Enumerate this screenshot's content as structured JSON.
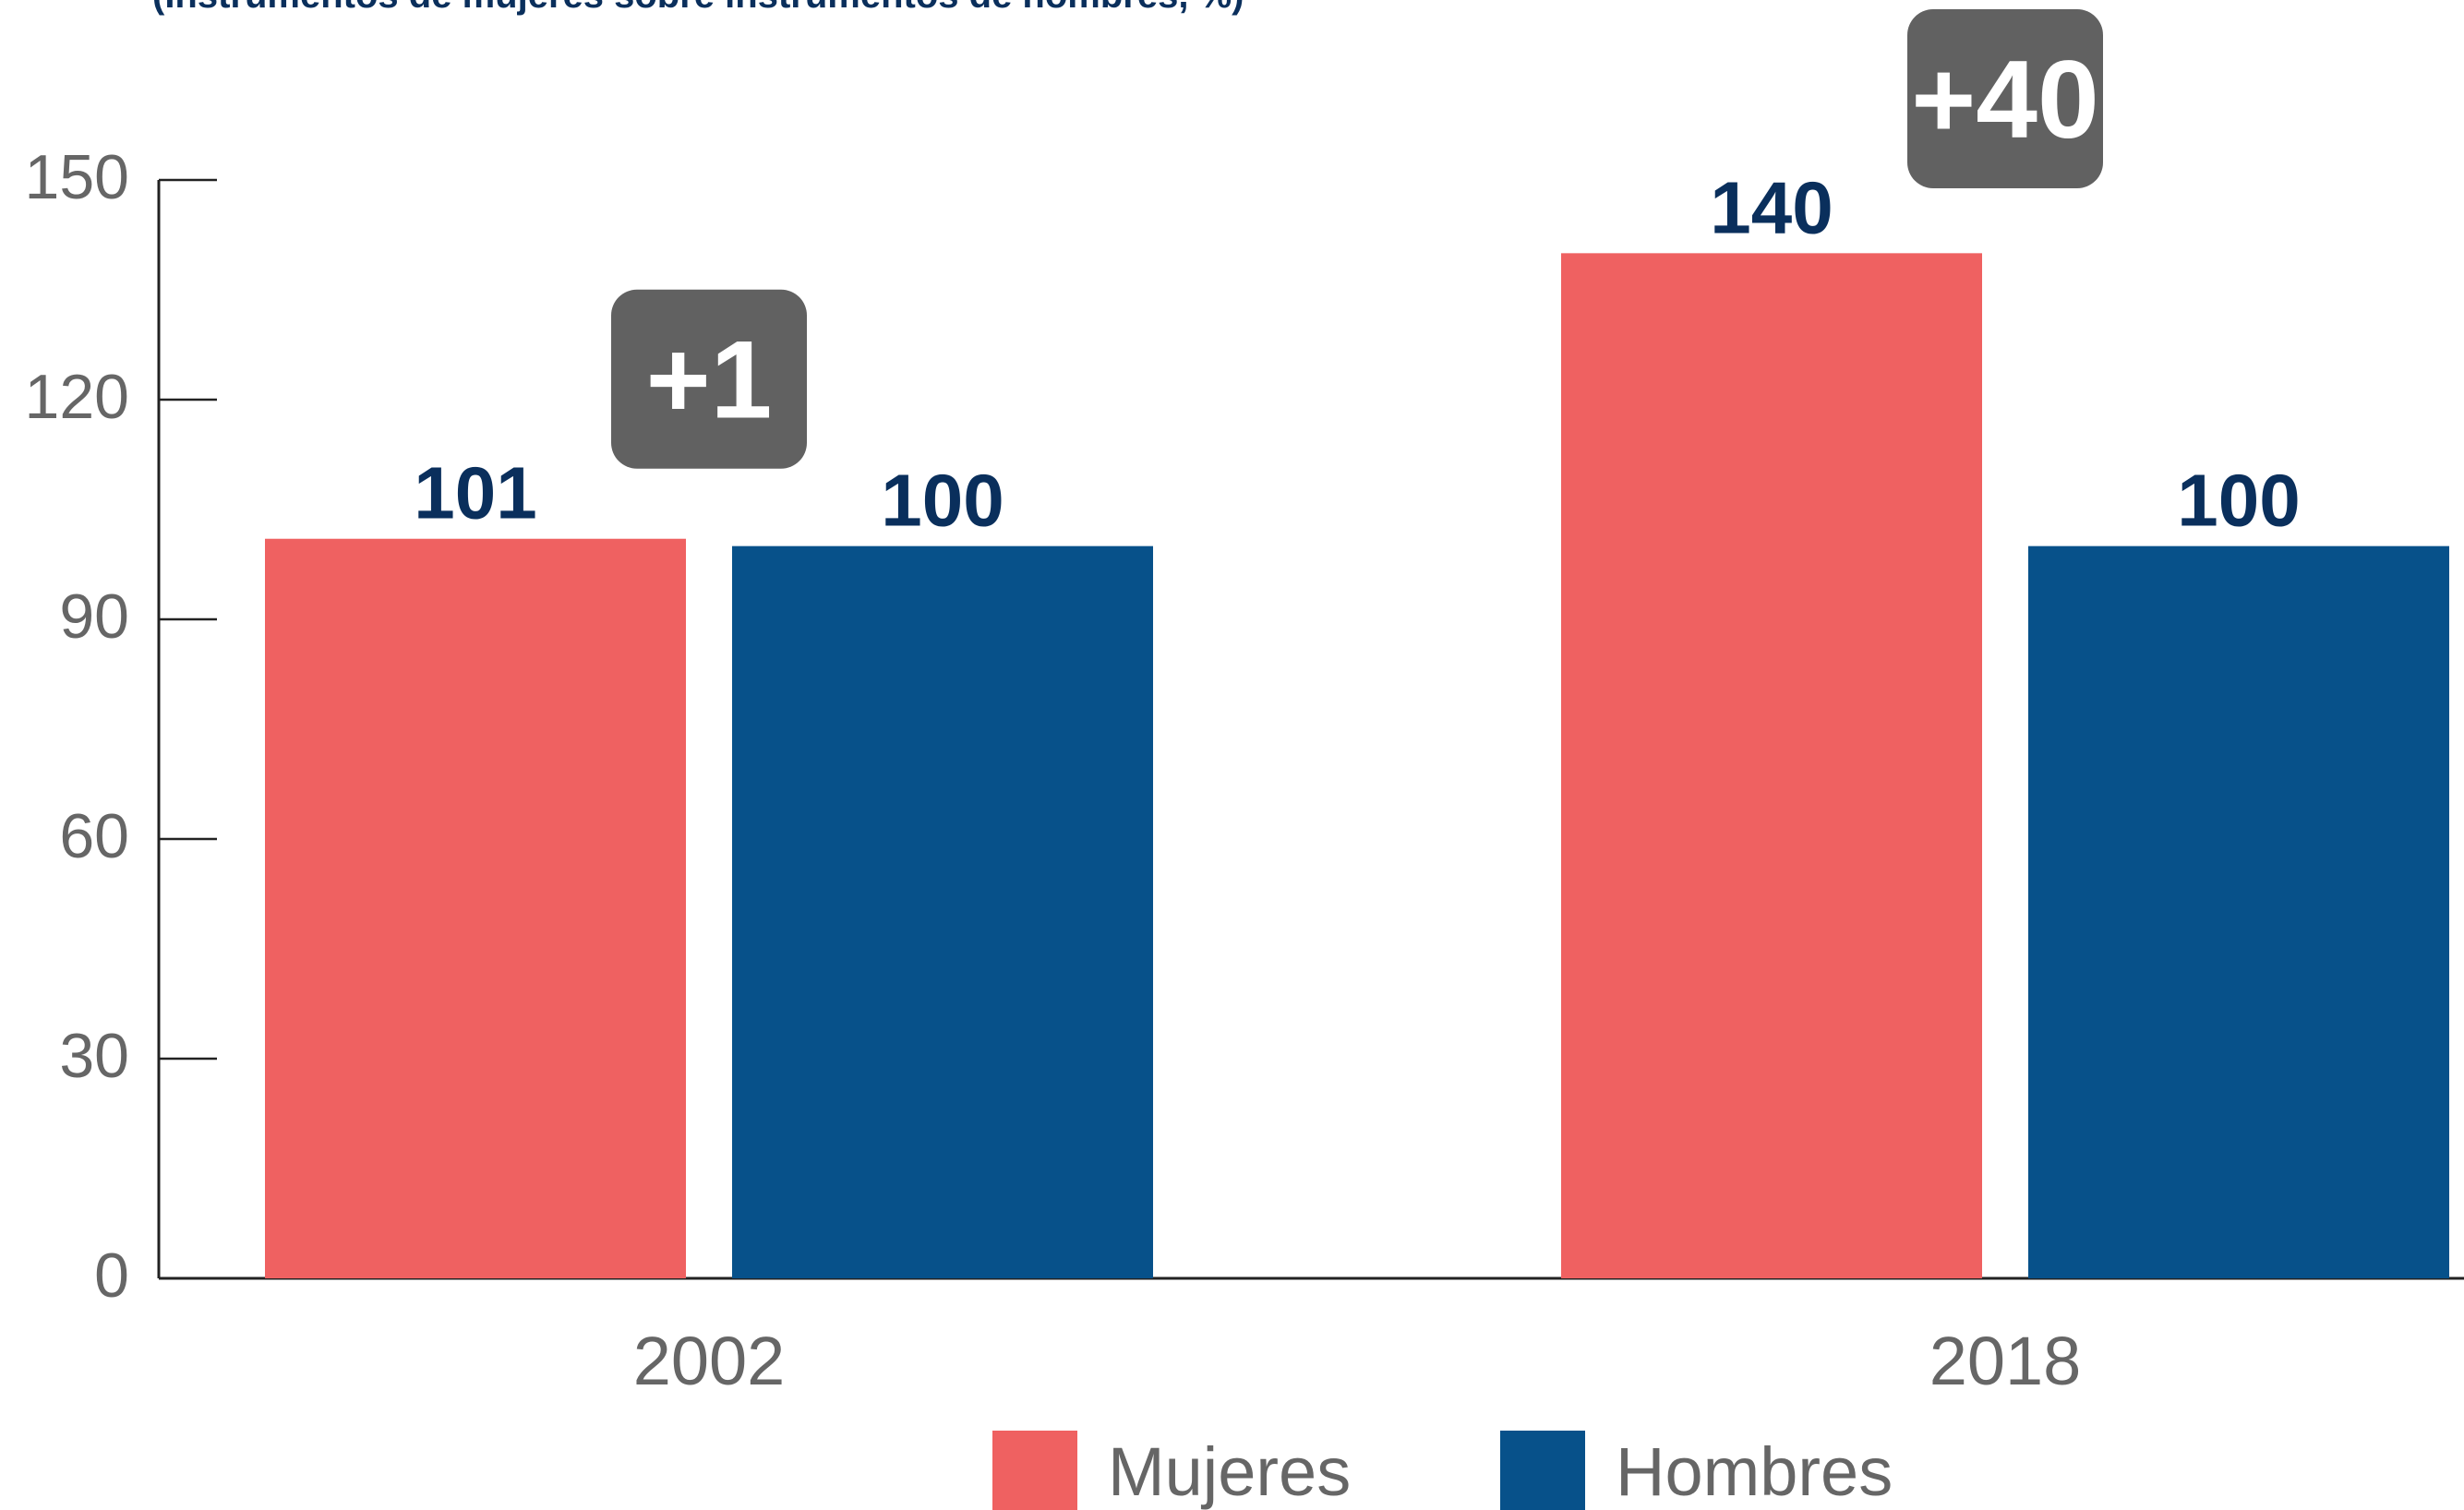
{
  "chart_data": {
    "type": "bar",
    "subtitle": "(Instrumentos de mujeres sobre instrumentos de hombres, %)",
    "categories": [
      "2002",
      "2018"
    ],
    "series": [
      {
        "name": "Mujeres",
        "color": "#ef6161",
        "values": [
          101,
          140
        ]
      },
      {
        "name": "Hombres",
        "color": "#07518a",
        "values": [
          100,
          100
        ]
      }
    ],
    "ylim": [
      0,
      150
    ],
    "yticks": [
      "0",
      "30",
      "60",
      "90",
      "120",
      "150"
    ],
    "data_labels": {
      "Mujeres": [
        "101",
        "140"
      ],
      "Hombres": [
        "100",
        "100"
      ]
    },
    "differences": [
      "+1",
      "+40"
    ],
    "difference_badge_color": "#616161",
    "legend": [
      "Mujeres",
      "Hombres"
    ],
    "legend_position": "bottom",
    "grid": false
  }
}
